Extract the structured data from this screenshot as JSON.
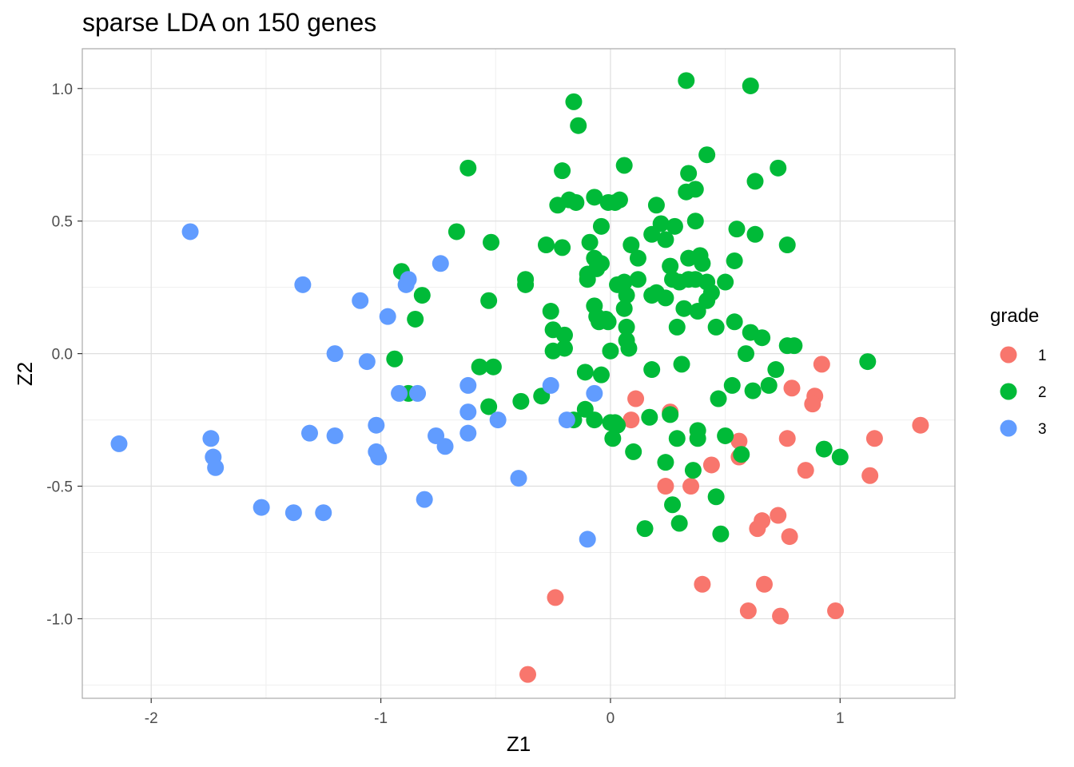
{
  "chart_data": {
    "type": "scatter",
    "title": "sparse LDA on 150 genes",
    "xlabel": "Z1",
    "ylabel": "Z2",
    "xlim": [
      -2.3,
      1.5
    ],
    "ylim": [
      -1.3,
      1.15
    ],
    "x_ticks": [
      -2,
      -1,
      0,
      1
    ],
    "x_tick_labels": [
      "-2",
      "-1",
      "0",
      "1"
    ],
    "y_ticks": [
      -1.0,
      -0.5,
      0.0,
      0.5,
      1.0
    ],
    "y_tick_labels": [
      "-1.0",
      "-0.5",
      "0.0",
      "0.5",
      "1.0"
    ],
    "grid": true,
    "legend": {
      "title": "grade",
      "placement": "right"
    },
    "series": [
      {
        "name": "1",
        "color": "#F8766D",
        "points": [
          [
            0.11,
            -0.17
          ],
          [
            0.09,
            -0.25
          ],
          [
            0.26,
            -0.22
          ],
          [
            0.24,
            -0.5
          ],
          [
            0.35,
            -0.5
          ],
          [
            0.44,
            -0.42
          ],
          [
            0.56,
            -0.33
          ],
          [
            0.56,
            -0.39
          ],
          [
            0.66,
            -0.63
          ],
          [
            0.64,
            -0.66
          ],
          [
            0.73,
            -0.61
          ],
          [
            0.78,
            -0.69
          ],
          [
            0.77,
            -0.32
          ],
          [
            0.79,
            -0.13
          ],
          [
            0.85,
            -0.44
          ],
          [
            0.89,
            -0.16
          ],
          [
            0.88,
            -0.19
          ],
          [
            0.92,
            -0.04
          ],
          [
            1.13,
            -0.46
          ],
          [
            1.15,
            -0.32
          ],
          [
            1.35,
            -0.27
          ],
          [
            0.4,
            -0.87
          ],
          [
            0.67,
            -0.87
          ],
          [
            0.6,
            -0.97
          ],
          [
            0.74,
            -0.99
          ],
          [
            0.98,
            -0.97
          ],
          [
            -0.24,
            -0.92
          ],
          [
            -0.36,
            -1.21
          ]
        ]
      },
      {
        "name": "2",
        "color": "#00BA38",
        "points": [
          [
            0.33,
            1.03
          ],
          [
            0.61,
            1.01
          ],
          [
            -0.16,
            0.95
          ],
          [
            -0.14,
            0.86
          ],
          [
            -0.62,
            0.7
          ],
          [
            -0.21,
            0.69
          ],
          [
            0.06,
            0.71
          ],
          [
            0.34,
            0.68
          ],
          [
            0.42,
            0.75
          ],
          [
            0.73,
            0.7
          ],
          [
            0.63,
            0.65
          ],
          [
            0.37,
            0.62
          ],
          [
            0.33,
            0.61
          ],
          [
            -0.23,
            0.56
          ],
          [
            -0.18,
            0.58
          ],
          [
            -0.15,
            0.57
          ],
          [
            -0.07,
            0.59
          ],
          [
            -0.01,
            0.57
          ],
          [
            0.02,
            0.57
          ],
          [
            0.04,
            0.58
          ],
          [
            -0.04,
            0.48
          ],
          [
            0.2,
            0.56
          ],
          [
            0.22,
            0.49
          ],
          [
            0.28,
            0.48
          ],
          [
            0.37,
            0.5
          ],
          [
            0.55,
            0.47
          ],
          [
            0.63,
            0.45
          ],
          [
            0.77,
            0.41
          ],
          [
            -0.67,
            0.46
          ],
          [
            -0.52,
            0.42
          ],
          [
            -0.28,
            0.41
          ],
          [
            -0.21,
            0.4
          ],
          [
            -0.09,
            0.42
          ],
          [
            0.09,
            0.41
          ],
          [
            0.18,
            0.45
          ],
          [
            0.24,
            0.43
          ],
          [
            0.12,
            0.36
          ],
          [
            -0.07,
            0.36
          ],
          [
            -0.06,
            0.32
          ],
          [
            -0.04,
            0.34
          ],
          [
            -0.1,
            0.3
          ],
          [
            -0.1,
            0.28
          ],
          [
            0.26,
            0.33
          ],
          [
            0.34,
            0.36
          ],
          [
            0.39,
            0.37
          ],
          [
            0.4,
            0.34
          ],
          [
            0.54,
            0.35
          ],
          [
            -0.91,
            0.31
          ],
          [
            -0.37,
            0.28
          ],
          [
            -0.37,
            0.26
          ],
          [
            0.03,
            0.26
          ],
          [
            0.06,
            0.27
          ],
          [
            0.12,
            0.28
          ],
          [
            0.27,
            0.28
          ],
          [
            0.3,
            0.27
          ],
          [
            0.34,
            0.28
          ],
          [
            0.37,
            0.28
          ],
          [
            0.42,
            0.27
          ],
          [
            0.5,
            0.27
          ],
          [
            -0.82,
            0.22
          ],
          [
            -0.53,
            0.2
          ],
          [
            -0.26,
            0.16
          ],
          [
            -0.07,
            0.18
          ],
          [
            0.06,
            0.17
          ],
          [
            0.07,
            0.22
          ],
          [
            0.18,
            0.22
          ],
          [
            0.2,
            0.23
          ],
          [
            0.24,
            0.21
          ],
          [
            0.32,
            0.17
          ],
          [
            0.38,
            0.16
          ],
          [
            0.42,
            0.2
          ],
          [
            0.44,
            0.23
          ],
          [
            -0.85,
            0.13
          ],
          [
            -0.06,
            0.14
          ],
          [
            -0.05,
            0.12
          ],
          [
            -0.02,
            0.13
          ],
          [
            -0.01,
            0.12
          ],
          [
            0.07,
            0.1
          ],
          [
            0.29,
            0.1
          ],
          [
            0.46,
            0.1
          ],
          [
            0.54,
            0.12
          ],
          [
            -0.25,
            0.09
          ],
          [
            -0.2,
            0.07
          ],
          [
            0.07,
            0.05
          ],
          [
            -0.25,
            0.01
          ],
          [
            -0.2,
            0.02
          ],
          [
            0.0,
            0.01
          ],
          [
            0.08,
            0.02
          ],
          [
            0.61,
            0.08
          ],
          [
            0.66,
            0.06
          ],
          [
            0.77,
            0.03
          ],
          [
            0.8,
            0.03
          ],
          [
            0.59,
            0.0
          ],
          [
            -0.94,
            -0.02
          ],
          [
            -0.57,
            -0.05
          ],
          [
            -0.51,
            -0.05
          ],
          [
            -0.11,
            -0.07
          ],
          [
            -0.04,
            -0.08
          ],
          [
            0.18,
            -0.06
          ],
          [
            0.31,
            -0.04
          ],
          [
            0.72,
            -0.06
          ],
          [
            1.12,
            -0.03
          ],
          [
            -0.88,
            -0.15
          ],
          [
            -0.53,
            -0.2
          ],
          [
            -0.39,
            -0.18
          ],
          [
            -0.3,
            -0.16
          ],
          [
            0.47,
            -0.17
          ],
          [
            0.53,
            -0.12
          ],
          [
            0.62,
            -0.14
          ],
          [
            0.69,
            -0.12
          ],
          [
            -0.16,
            -0.25
          ],
          [
            -0.11,
            -0.21
          ],
          [
            -0.07,
            -0.25
          ],
          [
            0.0,
            -0.26
          ],
          [
            0.02,
            -0.26
          ],
          [
            0.03,
            -0.27
          ],
          [
            0.17,
            -0.24
          ],
          [
            0.26,
            -0.23
          ],
          [
            0.01,
            -0.32
          ],
          [
            0.29,
            -0.32
          ],
          [
            0.38,
            -0.29
          ],
          [
            0.38,
            -0.32
          ],
          [
            0.5,
            -0.31
          ],
          [
            0.57,
            -0.38
          ],
          [
            0.1,
            -0.37
          ],
          [
            0.24,
            -0.41
          ],
          [
            0.36,
            -0.44
          ],
          [
            0.93,
            -0.36
          ],
          [
            1.0,
            -0.39
          ],
          [
            0.27,
            -0.57
          ],
          [
            0.46,
            -0.54
          ],
          [
            0.3,
            -0.64
          ],
          [
            0.15,
            -0.66
          ],
          [
            0.48,
            -0.68
          ]
        ]
      },
      {
        "name": "3",
        "color": "#619CFF",
        "points": [
          [
            -1.83,
            0.46
          ],
          [
            -1.34,
            0.26
          ],
          [
            -0.74,
            0.34
          ],
          [
            -1.09,
            0.2
          ],
          [
            -0.97,
            0.14
          ],
          [
            -0.89,
            0.26
          ],
          [
            -0.88,
            0.28
          ],
          [
            -1.2,
            0.0
          ],
          [
            -1.06,
            -0.03
          ],
          [
            -0.62,
            -0.12
          ],
          [
            -0.26,
            -0.12
          ],
          [
            -0.07,
            -0.15
          ],
          [
            -0.92,
            -0.15
          ],
          [
            -0.84,
            -0.15
          ],
          [
            -0.62,
            -0.22
          ],
          [
            -0.49,
            -0.25
          ],
          [
            -0.19,
            -0.25
          ],
          [
            -1.02,
            -0.27
          ],
          [
            -2.14,
            -0.34
          ],
          [
            -1.74,
            -0.32
          ],
          [
            -1.73,
            -0.39
          ],
          [
            -1.72,
            -0.43
          ],
          [
            -1.31,
            -0.3
          ],
          [
            -1.2,
            -0.31
          ],
          [
            -0.76,
            -0.31
          ],
          [
            -0.62,
            -0.3
          ],
          [
            -1.02,
            -0.37
          ],
          [
            -1.01,
            -0.39
          ],
          [
            -0.72,
            -0.35
          ],
          [
            -1.52,
            -0.58
          ],
          [
            -1.38,
            -0.6
          ],
          [
            -1.25,
            -0.6
          ],
          [
            -0.81,
            -0.55
          ],
          [
            -0.4,
            -0.47
          ],
          [
            -0.1,
            -0.7
          ]
        ]
      }
    ]
  }
}
